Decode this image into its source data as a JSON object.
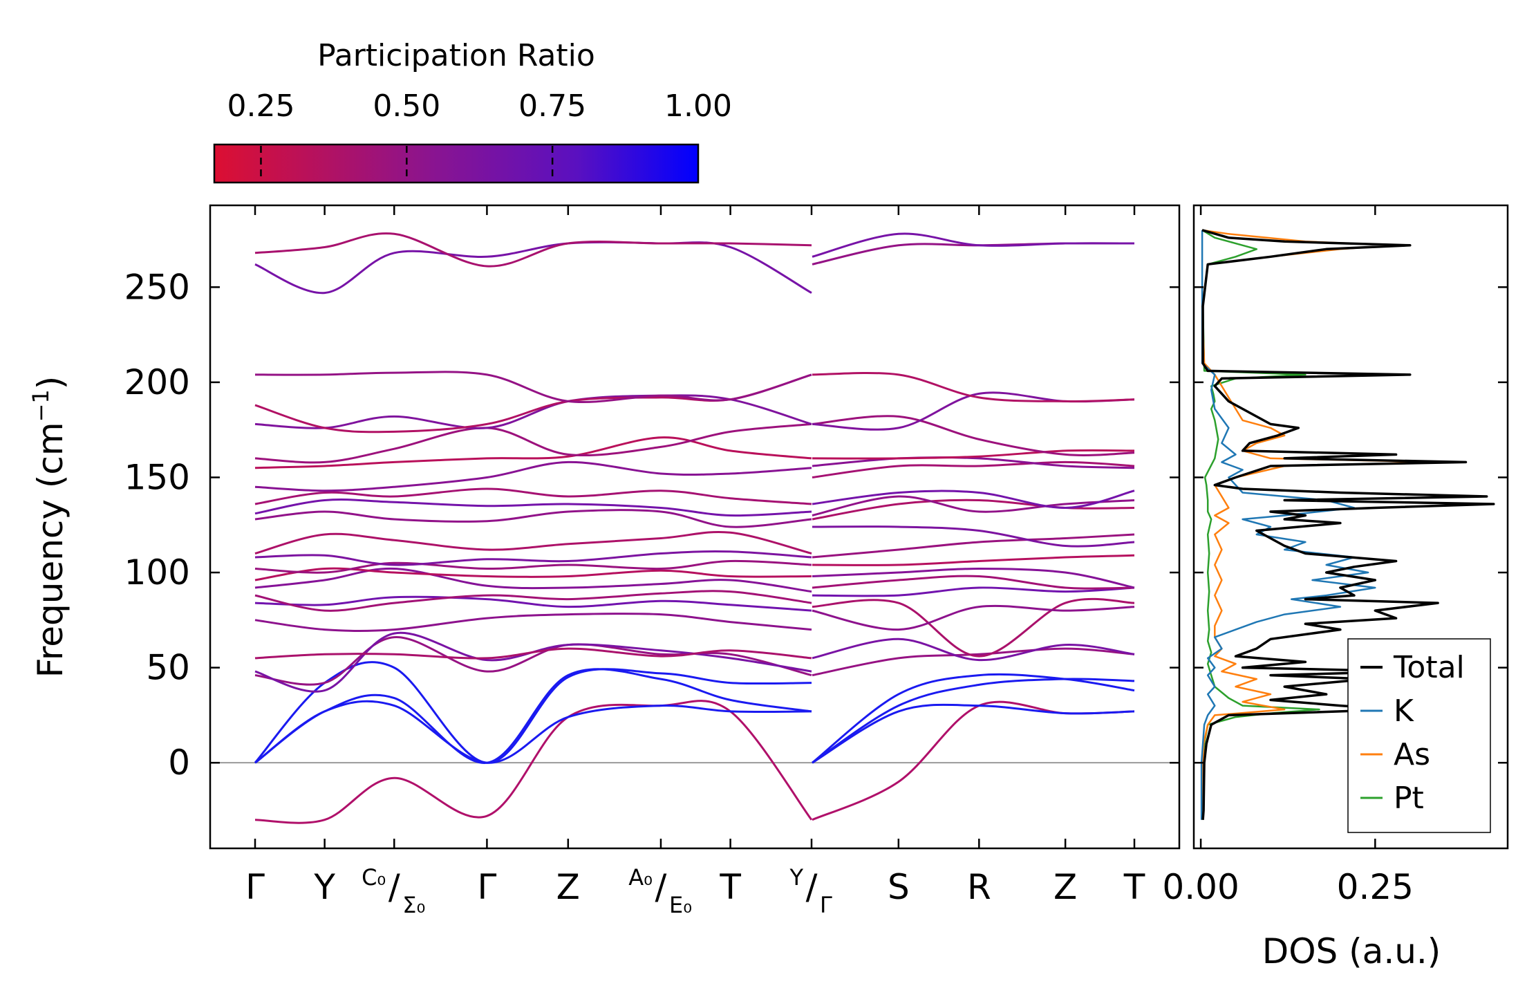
{
  "chart_data": [
    {
      "type": "line",
      "title": "",
      "ylabel": "Frequency (cm",
      "ylabel_sup": "−1",
      "ylabel_close": ")",
      "ylim": [
        -45,
        293
      ],
      "yticks": [
        0,
        50,
        100,
        150,
        200,
        250
      ],
      "zero_line": true,
      "segments": [
        {
          "labels": [
            "Γ",
            "Y",
            "C₀/Σ₀",
            "Γ",
            "Z",
            "A₀/E₀",
            "T",
            "Y/Γ"
          ],
          "positions": [
            0,
            0.3,
            0.6,
            1.0,
            1.35,
            1.75,
            2.05,
            2.4
          ]
        },
        {
          "labels": [
            "Y/Γ",
            "S",
            "R",
            "Z",
            "T"
          ],
          "positions": [
            0,
            0.375,
            0.725,
            1.1,
            1.4
          ]
        }
      ],
      "tick_label_texts": {
        "gamma": "Γ",
        "y": "Y",
        "c0": "C₀",
        "sigma0": "Σ₀",
        "slash": "/",
        "z": "Z",
        "a0": "A₀",
        "e0": "E₀",
        "t": "T",
        "s": "S",
        "r": "R"
      },
      "color_encoding": "participation ratio",
      "bands_A": [
        [
          -30,
          -30,
          -8,
          -28,
          24,
          30,
          27,
          -30
        ],
        [
          0,
          27,
          30,
          0,
          24,
          30,
          27,
          27
        ],
        [
          0,
          27,
          34,
          0,
          46,
          44,
          33,
          27
        ],
        [
          0,
          42,
          50,
          0,
          45,
          47,
          42,
          42
        ],
        [
          46,
          42,
          66,
          48,
          62,
          57,
          57,
          46
        ],
        [
          48,
          38,
          68,
          54,
          62,
          59,
          55,
          48
        ],
        [
          55,
          57,
          57,
          55,
          60,
          56,
          59,
          55
        ],
        [
          75,
          70,
          70,
          76,
          78,
          78,
          74,
          70
        ],
        [
          84,
          83,
          87,
          86,
          82,
          85,
          83,
          80
        ],
        [
          88,
          80,
          84,
          88,
          86,
          89,
          90,
          84
        ],
        [
          92,
          96,
          102,
          93,
          92,
          94,
          96,
          90
        ],
        [
          96,
          102,
          100,
          98,
          98,
          101,
          98,
          98
        ],
        [
          102,
          100,
          105,
          102,
          104,
          102,
          106,
          104
        ],
        [
          108,
          109,
          104,
          107,
          106,
          110,
          111,
          108
        ],
        [
          110,
          120,
          117,
          112,
          115,
          118,
          121,
          110
        ],
        [
          128,
          132,
          128,
          127,
          132,
          132,
          124,
          128
        ],
        [
          131,
          138,
          137,
          135,
          136,
          134,
          130,
          132
        ],
        [
          136,
          142,
          140,
          144,
          140,
          143,
          139,
          136
        ],
        [
          145,
          143,
          145,
          150,
          158,
          152,
          152,
          155
        ],
        [
          155,
          156,
          158,
          160,
          161,
          171,
          164,
          160
        ],
        [
          160,
          158,
          165,
          176,
          162,
          166,
          174,
          178
        ],
        [
          178,
          176,
          182,
          176,
          190,
          193,
          191,
          178
        ],
        [
          188,
          176,
          174,
          178,
          190,
          192,
          191,
          204
        ],
        [
          204,
          204,
          205,
          204,
          190,
          193,
          191,
          204
        ],
        [
          262,
          247,
          268,
          266,
          273,
          273,
          271,
          247
        ],
        [
          268,
          271,
          278,
          261,
          273,
          273,
          273,
          272
        ]
      ],
      "bands_B": [
        [
          -30,
          -10,
          30,
          26,
          27
        ],
        [
          0,
          27,
          30,
          26,
          27
        ],
        [
          0,
          30,
          41,
          44,
          43
        ],
        [
          0,
          36,
          46,
          44,
          38
        ],
        [
          46,
          55,
          57,
          60,
          57
        ],
        [
          55,
          65,
          54,
          62,
          57
        ],
        [
          82,
          84,
          56,
          84,
          84
        ],
        [
          80,
          70,
          82,
          80,
          82
        ],
        [
          88,
          88,
          92,
          90,
          92
        ],
        [
          92,
          96,
          98,
          92,
          92
        ],
        [
          98,
          100,
          102,
          100,
          92
        ],
        [
          104,
          104,
          106,
          108,
          109
        ],
        [
          108,
          112,
          116,
          118,
          120
        ],
        [
          124,
          124,
          122,
          114,
          116
        ],
        [
          128,
          136,
          138,
          134,
          134
        ],
        [
          130,
          140,
          132,
          136,
          138
        ],
        [
          136,
          142,
          142,
          134,
          143
        ],
        [
          150,
          156,
          156,
          158,
          156
        ],
        [
          156,
          160,
          160,
          156,
          155
        ],
        [
          160,
          160,
          161,
          164,
          164
        ],
        [
          178,
          182,
          170,
          162,
          163
        ],
        [
          178,
          176,
          194,
          190,
          191
        ],
        [
          204,
          204,
          192,
          190,
          191
        ],
        [
          262,
          272,
          272,
          273,
          273
        ],
        [
          266,
          278,
          272,
          273,
          273
        ]
      ]
    },
    {
      "type": "line",
      "xlabel": "DOS (a.u.)",
      "xlim": [
        -0.01,
        0.44
      ],
      "xticks": [
        "0.00",
        "0.25"
      ],
      "xtick_values": [
        0,
        0.25
      ],
      "legend_position": "lower-right",
      "series": [
        {
          "name": "Total",
          "color": "#000000",
          "y": [
            -30,
            -25,
            0,
            10,
            20,
            25,
            28,
            30,
            33,
            36,
            40,
            44,
            46,
            48,
            50,
            53,
            56,
            60,
            65,
            70,
            73,
            76,
            80,
            84,
            86,
            88,
            92,
            96,
            100,
            103,
            106,
            110,
            114,
            118,
            122,
            126,
            128,
            130,
            132,
            134,
            136,
            138,
            140,
            142,
            144,
            146,
            150,
            156,
            158,
            160,
            162,
            164,
            168,
            172,
            176,
            178,
            182,
            186,
            190,
            194,
            198,
            202,
            204,
            206,
            210,
            240,
            262,
            266,
            270,
            272,
            274,
            276,
            280
          ],
          "x": [
            0.003,
            0.004,
            0.005,
            0.008,
            0.015,
            0.04,
            0.28,
            0.2,
            0.1,
            0.18,
            0.12,
            0.24,
            0.1,
            0.3,
            0.06,
            0.15,
            0.05,
            0.08,
            0.1,
            0.2,
            0.15,
            0.28,
            0.25,
            0.34,
            0.15,
            0.22,
            0.2,
            0.25,
            0.18,
            0.22,
            0.28,
            0.15,
            0.12,
            0.1,
            0.08,
            0.2,
            0.12,
            0.15,
            0.1,
            0.25,
            0.42,
            0.12,
            0.41,
            0.2,
            0.06,
            0.02,
            0.05,
            0.1,
            0.38,
            0.12,
            0.28,
            0.06,
            0.07,
            0.11,
            0.14,
            0.1,
            0.08,
            0.06,
            0.04,
            0.03,
            0.02,
            0.03,
            0.3,
            0.01,
            0.003,
            0.003,
            0.01,
            0.1,
            0.18,
            0.3,
            0.12,
            0.04,
            0.002
          ]
        },
        {
          "name": "K",
          "color": "#1f77b4",
          "y": [
            -30,
            0,
            10,
            20,
            25,
            30,
            36,
            40,
            46,
            50,
            55,
            60,
            66,
            70,
            74,
            78,
            82,
            86,
            88,
            92,
            96,
            100,
            104,
            108,
            112,
            116,
            120,
            124,
            128,
            130,
            134,
            138,
            142,
            146,
            150,
            154,
            158,
            162,
            168,
            176,
            186,
            196,
            204,
            210,
            260,
            280
          ],
          "x": [
            0.001,
            0.001,
            0.003,
            0.005,
            0.01,
            0.02,
            0.01,
            0.02,
            0.01,
            0.02,
            0.01,
            0.03,
            0.02,
            0.05,
            0.08,
            0.12,
            0.2,
            0.13,
            0.18,
            0.25,
            0.16,
            0.24,
            0.18,
            0.22,
            0.12,
            0.15,
            0.08,
            0.1,
            0.06,
            0.12,
            0.22,
            0.18,
            0.06,
            0.05,
            0.04,
            0.06,
            0.03,
            0.05,
            0.03,
            0.04,
            0.02,
            0.015,
            0.02,
            0.002,
            0.002,
            0.002
          ]
        },
        {
          "name": "As",
          "color": "#ff7f0e",
          "y": [
            -30,
            0,
            10,
            20,
            25,
            28,
            32,
            36,
            40,
            44,
            48,
            52,
            56,
            60,
            66,
            72,
            80,
            88,
            96,
            104,
            112,
            120,
            126,
            130,
            134,
            140,
            146,
            150,
            156,
            158,
            160,
            164,
            168,
            172,
            176,
            180,
            186,
            192,
            198,
            204,
            210,
            240,
            262,
            266,
            270,
            272,
            274,
            278,
            280
          ],
          "x": [
            0.002,
            0.003,
            0.004,
            0.01,
            0.02,
            0.12,
            0.06,
            0.1,
            0.05,
            0.08,
            0.03,
            0.05,
            0.02,
            0.03,
            0.02,
            0.02,
            0.03,
            0.02,
            0.03,
            0.02,
            0.03,
            0.02,
            0.04,
            0.02,
            0.04,
            0.03,
            0.02,
            0.05,
            0.12,
            0.34,
            0.1,
            0.06,
            0.08,
            0.12,
            0.1,
            0.06,
            0.05,
            0.04,
            0.03,
            0.02,
            0.005,
            0.002,
            0.01,
            0.1,
            0.2,
            0.28,
            0.15,
            0.04,
            0.002
          ]
        },
        {
          "name": "Pt",
          "color": "#2ca02c",
          "y": [
            -30,
            0,
            10,
            20,
            24,
            26,
            28,
            30,
            34,
            40,
            46,
            52,
            58,
            64,
            70,
            80,
            90,
            100,
            110,
            120,
            128,
            132,
            138,
            146,
            150,
            160,
            170,
            180,
            186,
            190,
            194,
            198,
            202,
            204,
            206,
            240,
            262,
            266,
            270,
            272,
            276,
            280
          ],
          "x": [
            0.003,
            0.003,
            0.005,
            0.01,
            0.05,
            0.1,
            0.17,
            0.06,
            0.04,
            0.02,
            0.015,
            0.01,
            0.015,
            0.01,
            0.012,
            0.01,
            0.012,
            0.01,
            0.012,
            0.01,
            0.015,
            0.01,
            0.01,
            0.008,
            0.006,
            0.02,
            0.025,
            0.02,
            0.015,
            0.02,
            0.018,
            0.015,
            0.05,
            0.15,
            0.005,
            0.003,
            0.01,
            0.05,
            0.08,
            0.06,
            0.02,
            0.002
          ]
        }
      ]
    }
  ],
  "colorbar": {
    "title": "Participation Ratio",
    "ticks": [
      "0.25",
      "0.50",
      "0.75",
      "1.00"
    ],
    "tick_values": [
      0.25,
      0.5,
      0.75,
      1.0
    ],
    "range": [
      0.17,
      1.0
    ],
    "low_color": "#dc0f32",
    "mid_color": "#7a1aa6",
    "high_color": "#0000ff"
  }
}
